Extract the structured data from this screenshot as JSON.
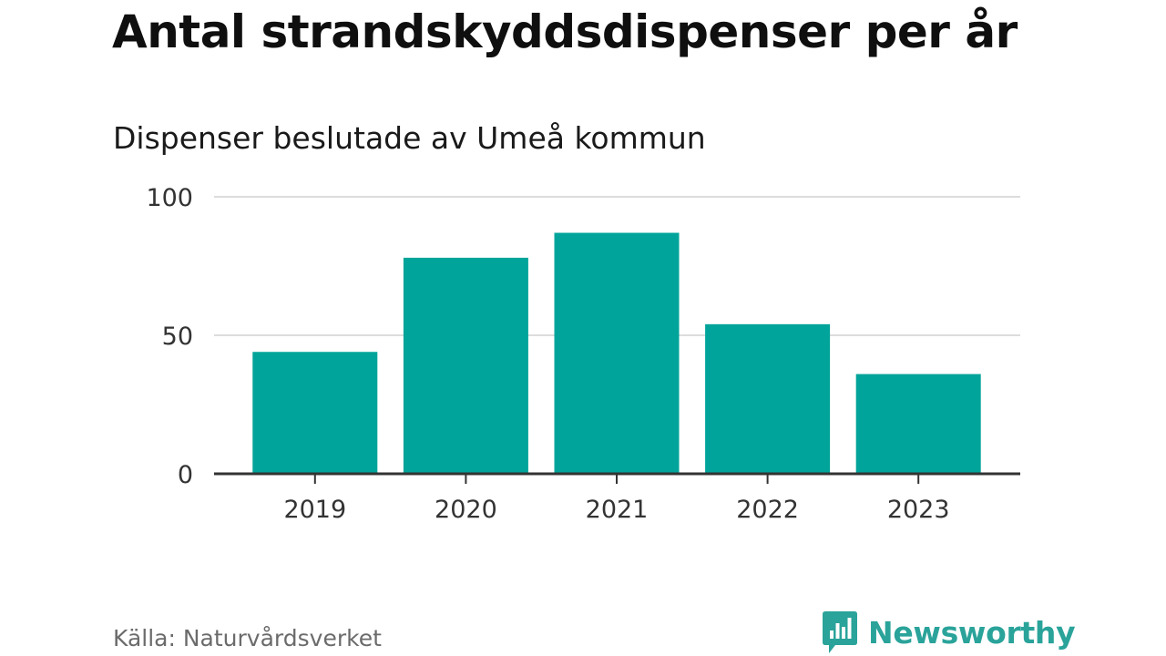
{
  "header": {
    "title": "Antal strandskyddsdispenser per år",
    "subtitle": "Dispenser beslutade av Umeå kommun"
  },
  "footer": {
    "source": "Källa: Naturvårdsverket",
    "brand": "Newsworthy"
  },
  "colors": {
    "bar": "#00a49a",
    "grid": "#dcdcdc",
    "axis": "#333333",
    "brand": "#2aa39a"
  },
  "chart_data": {
    "type": "bar",
    "title": "Antal strandskyddsdispenser per år",
    "subtitle": "Dispenser beslutade av Umeå kommun",
    "categories": [
      "2019",
      "2020",
      "2021",
      "2022",
      "2023"
    ],
    "values": [
      44,
      78,
      87,
      54,
      36
    ],
    "yticks": [
      0,
      50,
      100
    ],
    "ylim": [
      0,
      100
    ],
    "xlabel": "",
    "ylabel": "",
    "grid": true,
    "legend": "none"
  }
}
